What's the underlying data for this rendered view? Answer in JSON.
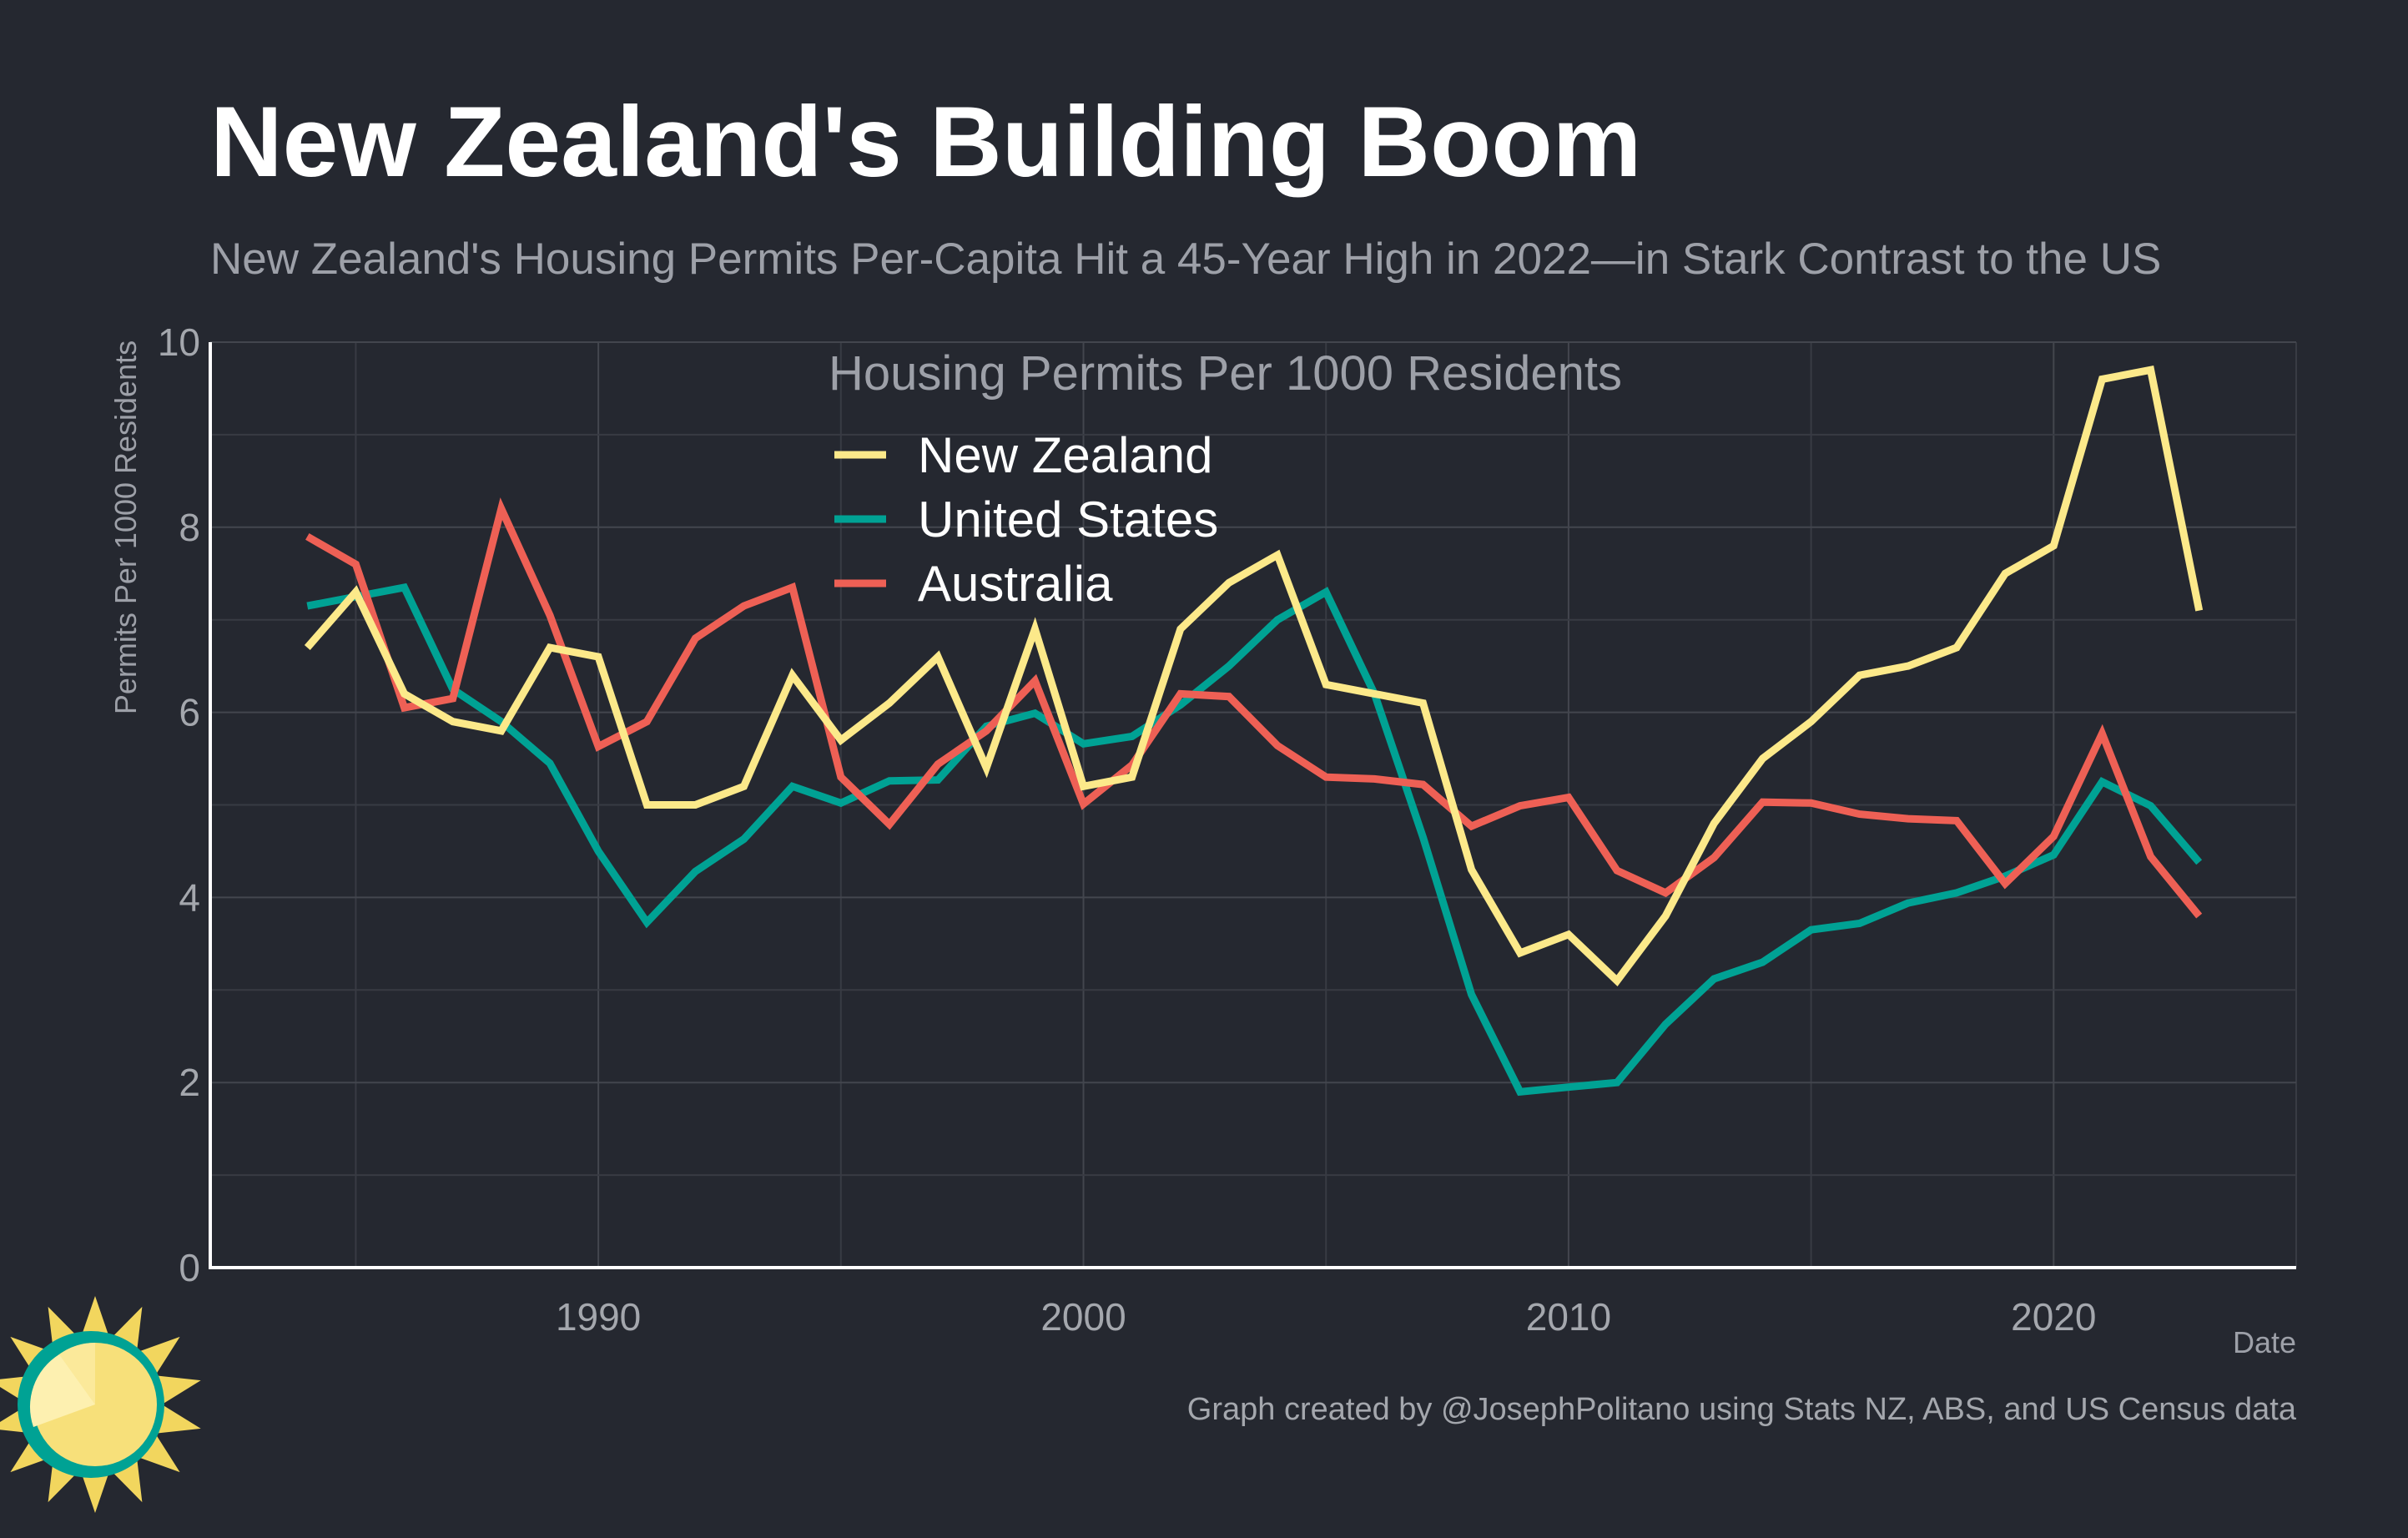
{
  "chart_data": {
    "type": "line",
    "title": "New Zealand's Building Boom",
    "subtitle": "New Zealand's Housing Permits Per-Capita Hit a 45-Year High in 2022—in Stark Contrast to the US",
    "xlabel": "Date",
    "ylabel": "Permits Per 1000 Residents",
    "xlim": [
      1982,
      2025
    ],
    "ylim": [
      0,
      10
    ],
    "x_ticks": [
      1990,
      2000,
      2010,
      2020
    ],
    "y_ticks": [
      0,
      2,
      4,
      6,
      8,
      10
    ],
    "grid": true,
    "legend_title": "Housing Permits Per 1000 Residents",
    "legend_position": "top-center",
    "x": [
      1984,
      1985,
      1986,
      1987,
      1988,
      1989,
      1990,
      1991,
      1992,
      1993,
      1994,
      1995,
      1996,
      1997,
      1998,
      1999,
      2000,
      2001,
      2002,
      2003,
      2004,
      2005,
      2006,
      2007,
      2008,
      2009,
      2010,
      2011,
      2012,
      2013,
      2014,
      2015,
      2016,
      2017,
      2018,
      2019,
      2020,
      2021,
      2022,
      2023
    ],
    "series": [
      {
        "name": "New Zealand",
        "color": "#fce98a",
        "values": [
          6.7,
          7.3,
          6.2,
          5.9,
          5.8,
          6.7,
          6.6,
          5.0,
          5.0,
          5.2,
          6.4,
          5.7,
          6.1,
          6.6,
          5.4,
          6.9,
          5.2,
          5.3,
          6.9,
          7.4,
          7.7,
          6.3,
          6.2,
          6.1,
          4.3,
          3.4,
          3.6,
          3.1,
          3.8,
          4.8,
          5.5,
          5.9,
          6.4,
          6.5,
          6.7,
          7.5,
          7.8,
          9.6,
          9.7,
          7.1
        ]
      },
      {
        "name": "United States",
        "color": "#00a294",
        "values": [
          7.15,
          7.25,
          7.35,
          6.25,
          5.9,
          5.45,
          4.5,
          3.73,
          4.28,
          4.63,
          5.2,
          5.02,
          5.26,
          5.27,
          5.85,
          5.99,
          5.66,
          5.74,
          6.08,
          6.5,
          7.0,
          7.3,
          6.2,
          4.65,
          2.95,
          1.9,
          1.95,
          2.0,
          2.63,
          3.12,
          3.3,
          3.65,
          3.72,
          3.94,
          4.05,
          4.23,
          4.46,
          5.25,
          4.99,
          4.38
        ]
      },
      {
        "name": "Australia",
        "color": "#ee6055",
        "values": [
          7.9,
          7.6,
          6.05,
          6.15,
          8.2,
          7.05,
          5.63,
          5.9,
          6.8,
          7.15,
          7.35,
          5.3,
          4.79,
          5.44,
          5.8,
          6.34,
          5.01,
          5.43,
          6.2,
          6.17,
          5.64,
          5.3,
          5.28,
          5.22,
          4.77,
          4.99,
          5.08,
          4.29,
          4.05,
          4.43,
          5.03,
          5.02,
          4.9,
          4.85,
          4.83,
          4.15,
          4.66,
          5.77,
          4.44,
          3.8
        ]
      }
    ],
    "caption": "Graph created by @JosephPolitano using Stats NZ, ABS, and US Census data"
  }
}
